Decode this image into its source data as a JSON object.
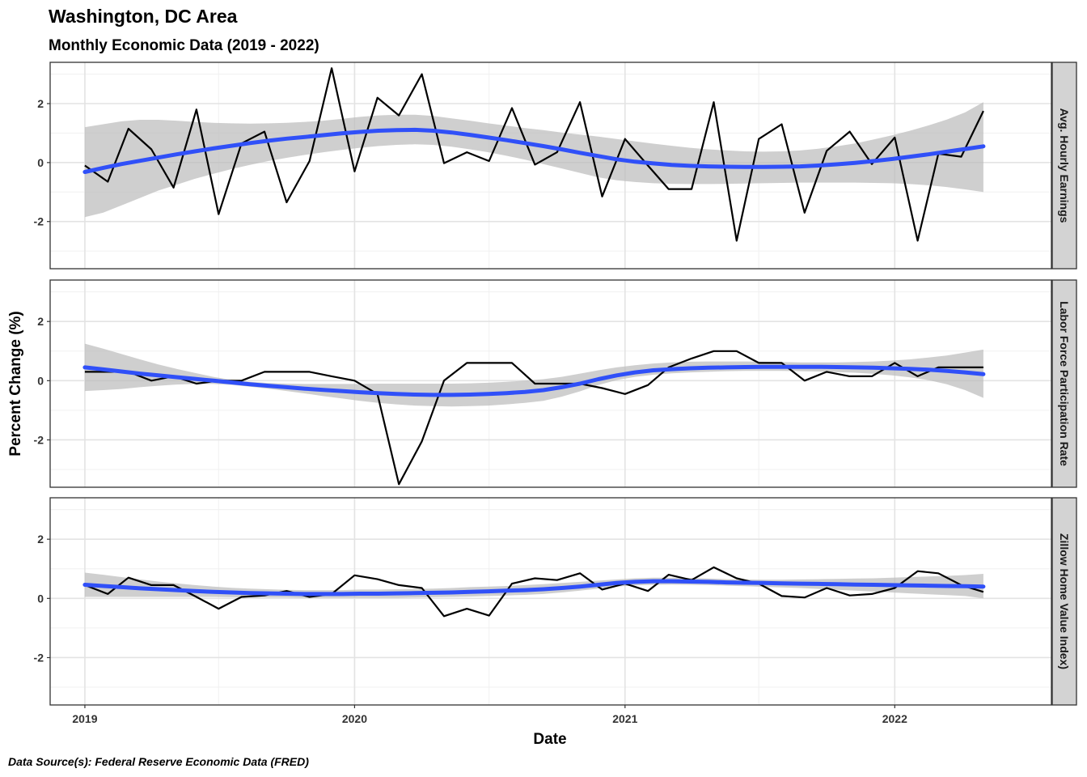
{
  "chart_data": {
    "type": "line",
    "title": "Washington, DC Area",
    "subtitle": "Monthly Economic Data (2019 - 2022)",
    "xlabel": "Date",
    "ylabel": "Percent Change (%)",
    "caption": "Data Source(s): Federal Reserve Economic Data (FRED)",
    "x_ticks": [
      "2019",
      "2020",
      "2021",
      "2022"
    ],
    "y_ticks": [
      -2,
      0,
      2
    ],
    "ylim": [
      -3.6,
      3.4
    ],
    "xlim": [
      "2018-11-15",
      "2022-08-01"
    ],
    "grid": true,
    "line_color": "#000000",
    "smooth_color": "#3050f8",
    "band_color": "#bdbdbd",
    "strip_color": "#d3d3d3",
    "x": [
      "2019-01",
      "2019-02",
      "2019-03",
      "2019-04",
      "2019-05",
      "2019-06",
      "2019-07",
      "2019-08",
      "2019-09",
      "2019-10",
      "2019-11",
      "2019-12",
      "2020-01",
      "2020-02",
      "2020-03",
      "2020-04",
      "2020-05",
      "2020-06",
      "2020-07",
      "2020-08",
      "2020-09",
      "2020-10",
      "2020-11",
      "2020-12",
      "2021-01",
      "2021-02",
      "2021-03",
      "2021-04",
      "2021-05",
      "2021-06",
      "2021-07",
      "2021-08",
      "2021-09",
      "2021-10",
      "2021-11",
      "2021-12",
      "2022-01",
      "2022-02",
      "2022-03",
      "2022-04",
      "2022-05"
    ],
    "panels": [
      {
        "name": "Avg. Hourly Earnings",
        "values": [
          -0.1,
          -0.65,
          1.15,
          0.45,
          -0.85,
          1.8,
          -1.75,
          0.65,
          1.05,
          -1.35,
          0.05,
          3.2,
          -0.3,
          2.2,
          1.6,
          3.0,
          -0.02,
          0.35,
          0.05,
          1.85,
          -0.07,
          0.35,
          2.05,
          -1.15,
          0.8,
          -0.1,
          -0.9,
          -0.9,
          2.05,
          -2.65,
          0.8,
          1.3,
          -1.7,
          0.4,
          1.05,
          -0.05,
          0.85,
          -2.65,
          0.3,
          0.2,
          1.75
        ],
        "smooth": [
          -0.32,
          -0.18,
          -0.05,
          0.06,
          0.17,
          0.28,
          0.38,
          0.48,
          0.57,
          0.66,
          0.74,
          0.81,
          0.87,
          0.93,
          0.99,
          1.04,
          1.08,
          1.1,
          1.11,
          1.08,
          1.02,
          0.94,
          0.85,
          0.76,
          0.66,
          0.56,
          0.45,
          0.33,
          0.22,
          0.11,
          0.03,
          -0.03,
          -0.08,
          -0.11,
          -0.13,
          -0.14,
          -0.15,
          -0.15,
          -0.14,
          -0.13,
          -0.1,
          -0.06,
          -0.01,
          0.05,
          0.12,
          0.2,
          0.28,
          0.37,
          0.46,
          0.55
        ],
        "band_low": [
          -1.85,
          -1.7,
          -1.45,
          -1.2,
          -0.95,
          -0.75,
          -0.55,
          -0.38,
          -0.22,
          -0.08,
          0.05,
          0.16,
          0.26,
          0.35,
          0.43,
          0.5,
          0.56,
          0.6,
          0.62,
          0.6,
          0.54,
          0.45,
          0.35,
          0.23,
          0.1,
          -0.05,
          -0.2,
          -0.35,
          -0.5,
          -0.6,
          -0.66,
          -0.7,
          -0.72,
          -0.73,
          -0.73,
          -0.72,
          -0.71,
          -0.7,
          -0.69,
          -0.68,
          -0.68,
          -0.68,
          -0.68,
          -0.69,
          -0.7,
          -0.73,
          -0.77,
          -0.83,
          -0.91,
          -1.0
        ],
        "band_high": [
          1.2,
          1.3,
          1.4,
          1.45,
          1.45,
          1.42,
          1.38,
          1.35,
          1.33,
          1.32,
          1.33,
          1.35,
          1.38,
          1.42,
          1.48,
          1.55,
          1.6,
          1.62,
          1.62,
          1.58,
          1.5,
          1.42,
          1.33,
          1.25,
          1.17,
          1.1,
          1.02,
          0.95,
          0.88,
          0.8,
          0.72,
          0.64,
          0.57,
          0.5,
          0.45,
          0.41,
          0.38,
          0.37,
          0.38,
          0.41,
          0.47,
          0.55,
          0.65,
          0.78,
          0.92,
          1.08,
          1.26,
          1.46,
          1.7,
          2.05
        ]
      },
      {
        "name": "Labor Force Participation Rate",
        "values": [
          0.3,
          0.3,
          0.3,
          0.0,
          0.15,
          -0.1,
          0.0,
          0.0,
          0.3,
          0.3,
          0.3,
          0.15,
          0.0,
          -0.45,
          -3.5,
          -2.05,
          0.0,
          0.6,
          0.6,
          0.6,
          -0.1,
          -0.1,
          -0.1,
          -0.25,
          -0.45,
          -0.15,
          0.45,
          0.75,
          1.0,
          1.0,
          0.6,
          0.6,
          0.0,
          0.3,
          0.15,
          0.15,
          0.6,
          0.15,
          0.45,
          0.45,
          0.45
        ],
        "smooth": [
          0.45,
          0.38,
          0.31,
          0.24,
          0.18,
          0.12,
          0.06,
          0.0,
          -0.06,
          -0.12,
          -0.17,
          -0.22,
          -0.27,
          -0.31,
          -0.35,
          -0.39,
          -0.42,
          -0.45,
          -0.47,
          -0.48,
          -0.48,
          -0.47,
          -0.45,
          -0.42,
          -0.38,
          -0.32,
          -0.22,
          -0.1,
          0.05,
          0.18,
          0.28,
          0.35,
          0.39,
          0.42,
          0.44,
          0.45,
          0.46,
          0.47,
          0.47,
          0.47,
          0.47,
          0.46,
          0.45,
          0.44,
          0.42,
          0.4,
          0.37,
          0.33,
          0.28,
          0.22
        ],
        "band_low": [
          -0.35,
          -0.32,
          -0.28,
          -0.22,
          -0.17,
          -0.13,
          -0.11,
          -0.11,
          -0.14,
          -0.2,
          -0.27,
          -0.35,
          -0.43,
          -0.52,
          -0.6,
          -0.68,
          -0.75,
          -0.8,
          -0.84,
          -0.86,
          -0.87,
          -0.86,
          -0.84,
          -0.8,
          -0.75,
          -0.68,
          -0.54,
          -0.36,
          -0.15,
          0.02,
          0.13,
          0.2,
          0.25,
          0.28,
          0.3,
          0.32,
          0.33,
          0.33,
          0.33,
          0.32,
          0.31,
          0.29,
          0.27,
          0.23,
          0.18,
          0.11,
          0.02,
          -0.12,
          -0.32,
          -0.58
        ],
        "band_high": [
          1.25,
          1.08,
          0.9,
          0.72,
          0.55,
          0.4,
          0.26,
          0.13,
          0.03,
          -0.04,
          -0.08,
          -0.1,
          -0.11,
          -0.11,
          -0.11,
          -0.11,
          -0.1,
          -0.1,
          -0.1,
          -0.1,
          -0.1,
          -0.09,
          -0.07,
          -0.04,
          0.0,
          0.05,
          0.13,
          0.24,
          0.35,
          0.45,
          0.52,
          0.58,
          0.62,
          0.64,
          0.65,
          0.65,
          0.65,
          0.64,
          0.63,
          0.62,
          0.62,
          0.62,
          0.63,
          0.65,
          0.68,
          0.72,
          0.78,
          0.85,
          0.95,
          1.05
        ]
      },
      {
        "name": "Zillow Home Value Index)",
        "values": [
          0.45,
          0.15,
          0.7,
          0.45,
          0.45,
          0.05,
          -0.35,
          0.05,
          0.1,
          0.25,
          0.05,
          0.15,
          0.78,
          0.65,
          0.45,
          0.35,
          -0.6,
          -0.35,
          -0.58,
          0.5,
          0.68,
          0.62,
          0.85,
          0.3,
          0.5,
          0.25,
          0.8,
          0.62,
          1.05,
          0.68,
          0.5,
          0.08,
          0.03,
          0.35,
          0.1,
          0.15,
          0.35,
          0.92,
          0.85,
          0.45,
          0.22
        ],
        "smooth": [
          0.46,
          0.42,
          0.38,
          0.34,
          0.31,
          0.28,
          0.25,
          0.22,
          0.2,
          0.18,
          0.17,
          0.16,
          0.15,
          0.15,
          0.15,
          0.16,
          0.16,
          0.17,
          0.18,
          0.19,
          0.2,
          0.22,
          0.24,
          0.26,
          0.28,
          0.31,
          0.35,
          0.4,
          0.46,
          0.52,
          0.56,
          0.58,
          0.58,
          0.57,
          0.56,
          0.54,
          0.53,
          0.52,
          0.51,
          0.5,
          0.49,
          0.48,
          0.47,
          0.46,
          0.45,
          0.44,
          0.43,
          0.42,
          0.41,
          0.4
        ],
        "band_low": [
          0.05,
          0.05,
          0.05,
          0.05,
          0.05,
          0.05,
          0.05,
          0.05,
          0.04,
          0.03,
          0.03,
          0.03,
          0.02,
          0.02,
          0.02,
          0.02,
          0.02,
          0.02,
          0.03,
          0.04,
          0.05,
          0.06,
          0.08,
          0.1,
          0.12,
          0.15,
          0.2,
          0.26,
          0.33,
          0.4,
          0.44,
          0.46,
          0.47,
          0.46,
          0.45,
          0.43,
          0.41,
          0.39,
          0.37,
          0.35,
          0.32,
          0.29,
          0.26,
          0.23,
          0.2,
          0.17,
          0.14,
          0.11,
          0.08,
          0.0
        ],
        "band_high": [
          0.87,
          0.8,
          0.72,
          0.64,
          0.57,
          0.51,
          0.45,
          0.4,
          0.36,
          0.33,
          0.31,
          0.29,
          0.28,
          0.28,
          0.28,
          0.3,
          0.3,
          0.31,
          0.32,
          0.33,
          0.35,
          0.38,
          0.4,
          0.42,
          0.45,
          0.48,
          0.52,
          0.56,
          0.6,
          0.64,
          0.68,
          0.7,
          0.7,
          0.69,
          0.67,
          0.65,
          0.64,
          0.63,
          0.63,
          0.64,
          0.65,
          0.66,
          0.67,
          0.68,
          0.7,
          0.72,
          0.74,
          0.76,
          0.79,
          0.83
        ]
      }
    ]
  }
}
